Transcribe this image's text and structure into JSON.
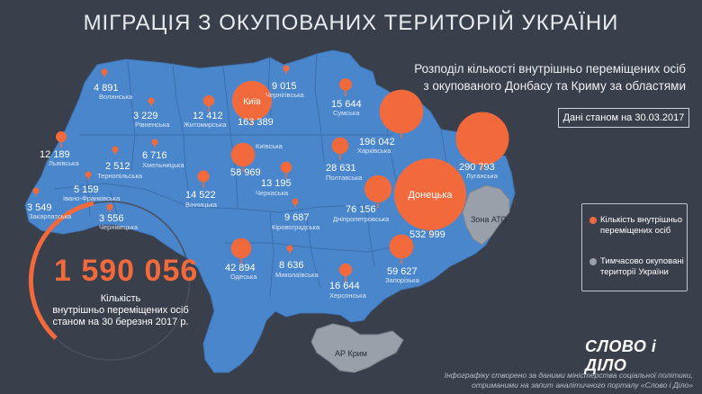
{
  "title": "МІГРАЦІЯ З ОКУПОВАНИХ ТЕРИТОРІЙ УКРАЇНИ",
  "subtitle": [
    "Розподіл кількості внутрішньо переміщених осіб",
    "з окупованого Донбасу та Криму за областями"
  ],
  "date": "Дані станом на 30.03.2017",
  "total": {
    "value": "1 590 056",
    "label": [
      "Кількість",
      "внутрішньо переміщених осіб",
      "станом на 30 березня 2017 р."
    ]
  },
  "legend": [
    {
      "label": [
        "Кількість внутрішньо",
        "переміщених осіб"
      ],
      "color": "#f26a3c"
    },
    {
      "label": [
        "Тимчасово окуповані",
        "території України"
      ],
      "color": "#9aa0a9"
    }
  ],
  "brand": "СЛОВО і ДІЛО",
  "credits": [
    "Інфографіку створено за даними міністерства соціальної політики,",
    "отриманими на запит аналітичного порталу «Слово і Діло»"
  ],
  "regions": [
    {
      "name": "Волинська",
      "value": "4 891"
    },
    {
      "name": "Рівненська",
      "value": "3 229"
    },
    {
      "name": "Житомирська",
      "value": "12 412"
    },
    {
      "name": "Київ",
      "value": "163 389"
    },
    {
      "name": "Київська",
      "value": "58 969"
    },
    {
      "name": "Чернігівська",
      "value": "9 015"
    },
    {
      "name": "Сумська",
      "value": "15 644"
    },
    {
      "name": "Харківська",
      "value": "196 042"
    },
    {
      "name": "Луганська",
      "value": "290 793"
    },
    {
      "name": "Донецька",
      "value": "532 999"
    },
    {
      "name": "Львівська",
      "value": "12 189"
    },
    {
      "name": "Тернопільська",
      "value": "2 512"
    },
    {
      "name": "Хмельницька",
      "value": "6 716"
    },
    {
      "name": "Івано-Франківська",
      "value": "5 159"
    },
    {
      "name": "Закарпатська",
      "value": "3 549"
    },
    {
      "name": "Чернівецька",
      "value": "3 556"
    },
    {
      "name": "Вінницька",
      "value": "14 522"
    },
    {
      "name": "Черкаська",
      "value": "13 195"
    },
    {
      "name": "Полтавська",
      "value": "28 631"
    },
    {
      "name": "Кіровоградська",
      "value": "9 687"
    },
    {
      "name": "Дніпропетровська",
      "value": "76 156"
    },
    {
      "name": "Одеська",
      "value": "42 894"
    },
    {
      "name": "Миколаївська",
      "value": "8 636"
    },
    {
      "name": "Херсонська",
      "value": "16 644"
    },
    {
      "name": "Запорізька",
      "value": "59 627"
    }
  ],
  "occupied": {
    "ato": "Зона АТО",
    "crimea": "АР Крим"
  },
  "colors": {
    "background": "#3a3f4c",
    "map": "#4a86cc",
    "accent": "#f26a3c",
    "occupied": "#9aa0a9"
  }
}
